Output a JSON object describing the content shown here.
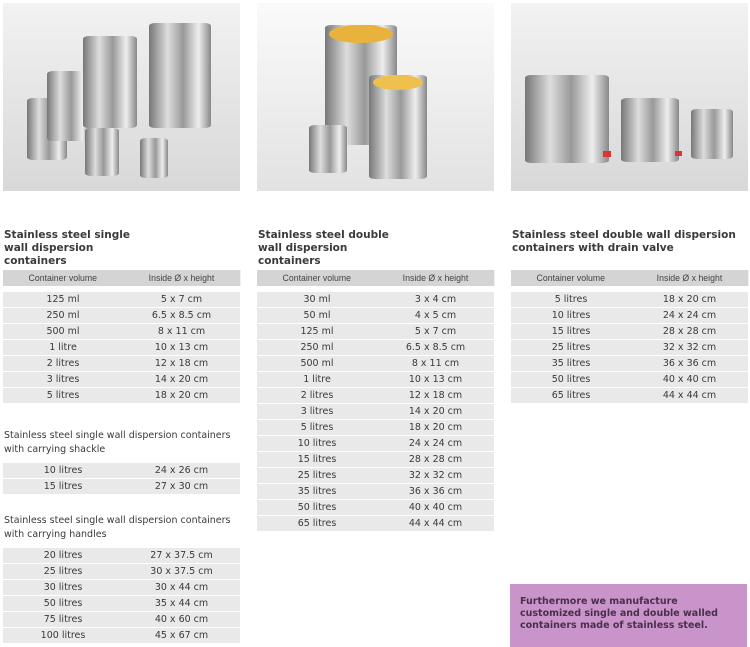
{
  "columns": [
    {
      "title": "Stainless steel single wall dispersion containers",
      "header": [
        "Container volume",
        "Inside Ø x height"
      ],
      "rows": [
        [
          "125 ml",
          "5 x 7 cm"
        ],
        [
          "250 ml",
          "6.5 x 8.5 cm"
        ],
        [
          "500 ml",
          "8 x 11 cm"
        ],
        [
          "1 litre",
          "10 x 13 cm"
        ],
        [
          "2 litres",
          "12 x 18 cm"
        ],
        [
          "3 litres",
          "14 x 20 cm"
        ],
        [
          "5 litres",
          "18 x 20 cm"
        ]
      ],
      "extra": [
        {
          "title": "Stainless steel single wall dispersion containers with carrying shackle",
          "rows": [
            [
              "10 litres",
              "24 x 26 cm"
            ],
            [
              "15 litres",
              "27 x 30 cm"
            ]
          ]
        },
        {
          "title": "Stainless steel single wall dispersion containers with carrying handles",
          "rows": [
            [
              "20 litres",
              "27 x 37.5 cm"
            ],
            [
              "25 litres",
              "30 x 37.5 cm"
            ],
            [
              "30 litres",
              "30 x 44 cm"
            ],
            [
              "50 litres",
              "35 x 44 cm"
            ],
            [
              "75 litres",
              "40 x 60 cm"
            ],
            [
              "100 litres",
              "45 x 67 cm"
            ]
          ]
        }
      ]
    },
    {
      "title": "Stainless steel double wall dispersion containers",
      "header": [
        "Container volume",
        "Inside Ø x height"
      ],
      "rows": [
        [
          "30 ml",
          "3 x 4 cm"
        ],
        [
          "50 ml",
          "4 x 5 cm"
        ],
        [
          "125 ml",
          "5 x 7 cm"
        ],
        [
          "250 ml",
          "6.5 x 8.5 cm"
        ],
        [
          "500 ml",
          "8 x 11 cm"
        ],
        [
          "1 litre",
          "10 x 13 cm"
        ],
        [
          "2 litres",
          "12 x 18 cm"
        ],
        [
          "3 litres",
          "14 x 20 cm"
        ],
        [
          "5 litres",
          "18 x 20 cm"
        ],
        [
          "10 litres",
          "24 x 24 cm"
        ],
        [
          "15 litres",
          "28 x 28 cm"
        ],
        [
          "25 litres",
          "32 x 32 cm"
        ],
        [
          "35 litres",
          "36 x 36 cm"
        ],
        [
          "50 litres",
          "40 x 40 cm"
        ],
        [
          "65 litres",
          "44 x 44 cm"
        ]
      ]
    },
    {
      "title": "Stainless steel double wall dispersion containers with drain valve",
      "header": [
        "Container volume",
        "Inside Ø x height"
      ],
      "rows": [
        [
          "5 litres",
          "18 x 20 cm"
        ],
        [
          "10 litres",
          "24 x 24 cm"
        ],
        [
          "15 litres",
          "28 x 28 cm"
        ],
        [
          "25 litres",
          "32 x 32 cm"
        ],
        [
          "35 litres",
          "36 x 36 cm"
        ],
        [
          "50 litres",
          "40 x 40 cm"
        ],
        [
          "65 litres",
          "44 x 44 cm"
        ]
      ]
    }
  ],
  "note": "Furthermore we manufacture customized single and double walled containers made of stainless steel.",
  "colors": {
    "header": "#d4d4d4",
    "row": "#e9e9e9",
    "note": "#c994c9"
  }
}
